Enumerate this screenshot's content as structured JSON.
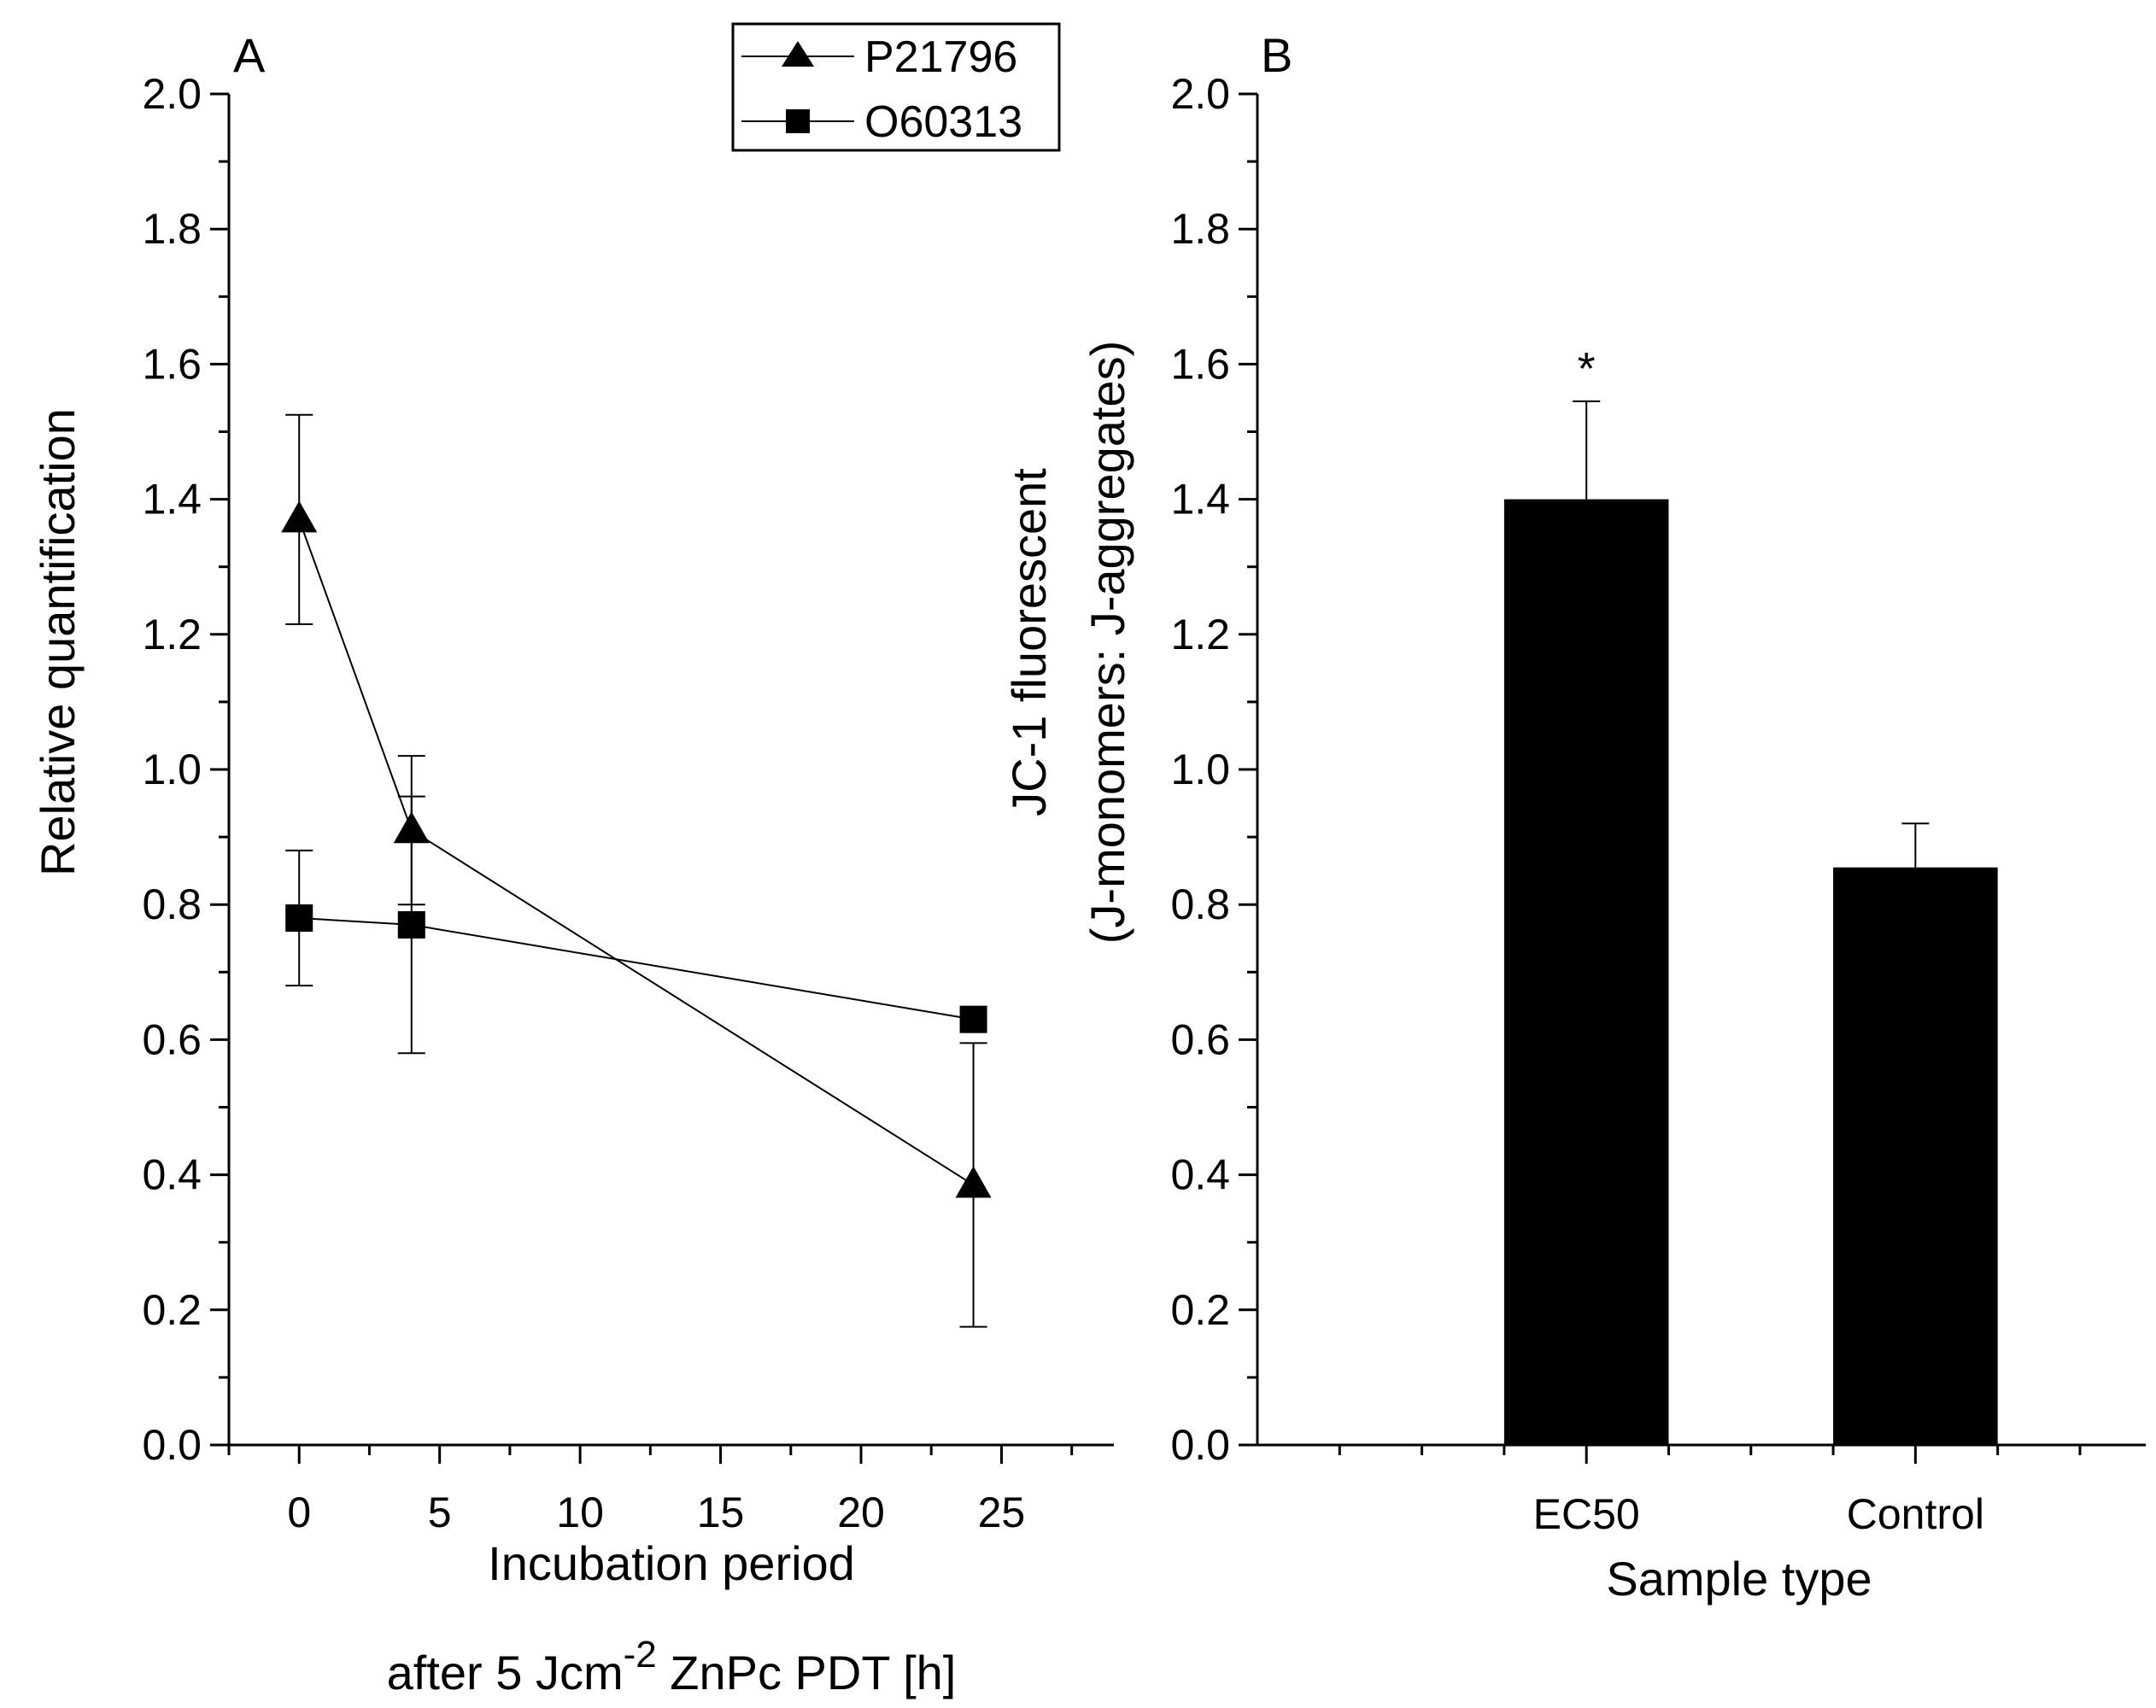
{
  "chart_data": [
    {
      "panel": "A",
      "type": "line",
      "xlabel_line1": "Incubation period",
      "xlabel_line2_prefix": "after 5 Jcm",
      "xlabel_line2_sup": "-2",
      "xlabel_line2_suffix": " ZnPc PDT [h]",
      "ylabel": "Relative quantification",
      "xlim": [
        -2.5,
        29
      ],
      "ylim": [
        0,
        2.0
      ],
      "xticks": [
        0,
        5,
        10,
        15,
        20,
        25
      ],
      "yticks": [
        0.0,
        0.2,
        0.4,
        0.6,
        0.8,
        1.0,
        1.2,
        1.4,
        1.6,
        1.8,
        2.0
      ],
      "ytick_labels": [
        "0.0",
        "0.2",
        "0.4",
        "0.6",
        "0.8",
        "1.0",
        "1.2",
        "1.4",
        "1.6",
        "1.8",
        "2.0"
      ],
      "legend_position": "top-right",
      "series": [
        {
          "name": "P21796",
          "marker": "triangle",
          "x": [
            0,
            4,
            24
          ],
          "y": [
            1.37,
            0.91,
            0.385
          ],
          "err": [
            0.155,
            0.11,
            0.21
          ]
        },
        {
          "name": "O60313",
          "marker": "square",
          "x": [
            0,
            4,
            24
          ],
          "y": [
            0.78,
            0.77,
            0.63
          ],
          "err": [
            0.1,
            0.19,
            0
          ]
        }
      ]
    },
    {
      "panel": "B",
      "type": "bar",
      "xlabel": "Sample type",
      "ylabel_line1": "JC-1 fluorescent",
      "ylabel_line2": "(J-monomers: J-aggregates)",
      "ylim": [
        0,
        2.0
      ],
      "yticks": [
        0.0,
        0.2,
        0.4,
        0.6,
        0.8,
        1.0,
        1.2,
        1.4,
        1.6,
        1.8,
        2.0
      ],
      "ytick_labels": [
        "0.0",
        "0.2",
        "0.4",
        "0.6",
        "0.8",
        "1.0",
        "1.2",
        "1.4",
        "1.6",
        "1.8",
        "2.0"
      ],
      "categories": [
        "EC50",
        "Control"
      ],
      "values": [
        1.4,
        0.855
      ],
      "errors": [
        0.145,
        0.065
      ],
      "annotations": [
        {
          "category": "EC50",
          "text": "*"
        }
      ]
    }
  ],
  "colors": {
    "ink": "#000000",
    "background": "#ffffff"
  }
}
